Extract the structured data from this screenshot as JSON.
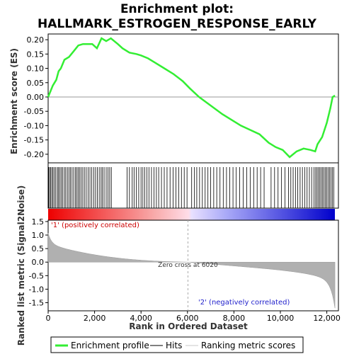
{
  "chart_data": {
    "type": "line",
    "title_line1": "Enrichment plot:",
    "title_line2": "HALLMARK_ESTROGEN_RESPONSE_EARLY",
    "xlabel": "Rank in Ordered Dataset",
    "ylabel_top": "Enrichment score (ES)",
    "ylabel_bottom": "Ranked list metric (Signal2Noise)",
    "x_range": [
      0,
      12500
    ],
    "es_ylim": [
      -0.23,
      0.22
    ],
    "metric_ylim": [
      -1.8,
      1.55
    ],
    "x_ticks": [
      0,
      2000,
      4000,
      6000,
      8000,
      10000,
      12000
    ],
    "x_tick_labels": [
      "0",
      "2,000",
      "4,000",
      "6,000",
      "8,000",
      "10,000",
      "12,000"
    ],
    "es_ticks": [
      0.2,
      0.15,
      0.1,
      0.05,
      0.0,
      -0.05,
      -0.1,
      -0.15,
      -0.2
    ],
    "es_tick_labels": [
      "0.20",
      "0.15",
      "0.10",
      "0.05",
      "0.00",
      "-0.05",
      "-0.10",
      "-0.15",
      "-0.20"
    ],
    "metric_ticks": [
      1.5,
      1.0,
      0.5,
      0.0,
      -0.5,
      -1.0,
      -1.5
    ],
    "metric_tick_labels": [
      "1.5",
      "1.0",
      "0.5",
      "0.0",
      "-0.5",
      "-1.0",
      "-1.5"
    ],
    "es_curve": [
      [
        0,
        0.0
      ],
      [
        100,
        0.02
      ],
      [
        200,
        0.04
      ],
      [
        350,
        0.06
      ],
      [
        450,
        0.09
      ],
      [
        550,
        0.1
      ],
      [
        700,
        0.13
      ],
      [
        900,
        0.14
      ],
      [
        1100,
        0.16
      ],
      [
        1300,
        0.18
      ],
      [
        1500,
        0.185
      ],
      [
        1700,
        0.185
      ],
      [
        1900,
        0.185
      ],
      [
        2100,
        0.17
      ],
      [
        2300,
        0.205
      ],
      [
        2500,
        0.195
      ],
      [
        2700,
        0.205
      ],
      [
        3000,
        0.185
      ],
      [
        3200,
        0.17
      ],
      [
        3500,
        0.155
      ],
      [
        3800,
        0.15
      ],
      [
        4000,
        0.145
      ],
      [
        4300,
        0.135
      ],
      [
        4600,
        0.12
      ],
      [
        5000,
        0.1
      ],
      [
        5400,
        0.08
      ],
      [
        5800,
        0.055
      ],
      [
        6100,
        0.03
      ],
      [
        6500,
        0.0
      ],
      [
        7000,
        -0.03
      ],
      [
        7500,
        -0.06
      ],
      [
        7900,
        -0.08
      ],
      [
        8300,
        -0.1
      ],
      [
        8700,
        -0.115
      ],
      [
        9100,
        -0.13
      ],
      [
        9500,
        -0.16
      ],
      [
        9800,
        -0.175
      ],
      [
        10100,
        -0.185
      ],
      [
        10400,
        -0.21
      ],
      [
        10700,
        -0.19
      ],
      [
        11000,
        -0.18
      ],
      [
        11300,
        -0.185
      ],
      [
        11500,
        -0.19
      ],
      [
        11600,
        -0.165
      ],
      [
        11800,
        -0.14
      ],
      [
        12000,
        -0.09
      ],
      [
        12150,
        -0.04
      ],
      [
        12250,
        0.0
      ],
      [
        12350,
        0.005
      ]
    ],
    "hits": [
      20,
      60,
      110,
      160,
      210,
      270,
      330,
      400,
      450,
      510,
      570,
      630,
      700,
      760,
      830,
      900,
      960,
      1030,
      1100,
      1170,
      1230,
      1290,
      1350,
      1420,
      1490,
      1560,
      1640,
      1720,
      1800,
      1880,
      1960,
      2040,
      2120,
      2200,
      2280,
      2340,
      2410,
      2500,
      2580,
      2650,
      2720,
      3400,
      3500,
      3620,
      3700,
      3800,
      3900,
      4000,
      4080,
      4160,
      4250,
      4340,
      4450,
      4560,
      4660,
      4760,
      4880,
      5000,
      5120,
      5250,
      5380,
      5500,
      5620,
      5740,
      5860,
      5980,
      6180,
      6300,
      6400,
      6520,
      6640,
      6760,
      6880,
      7000,
      7130,
      7260,
      7400,
      7540,
      7680,
      7820,
      7960,
      8100,
      8250,
      8400,
      8550,
      8700,
      8850,
      9000,
      9150,
      9300,
      9600,
      9750,
      9900,
      10050,
      10200,
      10350,
      10450,
      10550,
      10650,
      10750,
      10850,
      10950,
      11050,
      11150,
      11250,
      11350,
      11450,
      11520,
      11580,
      11640,
      11700,
      11760,
      11820,
      11880,
      11940,
      12000,
      12060,
      12120,
      12180,
      12240,
      12300
    ],
    "zero_cross": 6020,
    "zero_cross_label": "Zero cross at 6020",
    "pos_label": "'1' (positively correlated)",
    "neg_label": "'2' (negatively correlated)",
    "legend": [
      "Enrichment profile",
      "Hits",
      "Ranking metric scores"
    ],
    "colors": {
      "es_line": "#33ee33",
      "hits": "#000000",
      "metric_fill": "#b0b0b0",
      "pos": "#ee0000",
      "neg": "#0000ee",
      "zero_line": "#999999"
    }
  }
}
